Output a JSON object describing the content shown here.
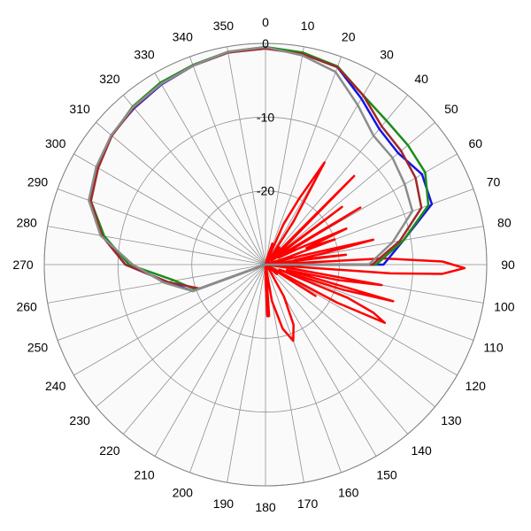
{
  "chart_data": {
    "type": "polar",
    "angle_ticks": [
      0,
      10,
      20,
      30,
      40,
      50,
      60,
      70,
      80,
      90,
      100,
      110,
      120,
      130,
      140,
      150,
      160,
      170,
      180,
      190,
      200,
      210,
      220,
      230,
      240,
      250,
      260,
      270,
      280,
      290,
      300,
      310,
      320,
      330,
      340,
      350
    ],
    "radial_ticks": [
      0,
      -10,
      -20
    ],
    "radial_range": [
      -30,
      0
    ],
    "angle_direction": "clockwise",
    "zero_angle_position": "top",
    "grid": true,
    "series": [
      {
        "color": "#ff0000",
        "angles": [
          0,
          5,
          10,
          15,
          18,
          20,
          24,
          27,
          30,
          33,
          36,
          39,
          42,
          45,
          48,
          50,
          53,
          56,
          59,
          62,
          64,
          66,
          68,
          70,
          72,
          74,
          76,
          77,
          79,
          81,
          83,
          85,
          87,
          89,
          91,
          93,
          94,
          96,
          98,
          100,
          102,
          104,
          106,
          108,
          110,
          112,
          114,
          116,
          118,
          120,
          122,
          124,
          126,
          128,
          130,
          132,
          134,
          136,
          140,
          145,
          150,
          155,
          160,
          165,
          170,
          172,
          174,
          176,
          178,
          180,
          185,
          190,
          200,
          250,
          300,
          350,
          360
        ],
        "values": [
          -32,
          -35,
          -32,
          -29,
          -27,
          -32,
          -24,
          -20,
          -14,
          -23,
          -29,
          -27,
          -30,
          -13,
          -27,
          -29,
          -17,
          -29,
          -15,
          -28,
          -25,
          -18,
          -24,
          -20,
          -27,
          -30,
          -25,
          -15,
          -22,
          -26,
          -19,
          -30,
          -14,
          -6,
          -3,
          -6,
          -13,
          -30,
          -27,
          -14,
          -20,
          -27,
          -12,
          -19,
          -28,
          -18,
          -14,
          -12,
          -19,
          -30,
          -22,
          -31,
          -33,
          -32,
          -28,
          -32,
          -32,
          -34,
          -33,
          -29,
          -25,
          -21,
          -19,
          -21,
          -25,
          -33,
          -29,
          -23,
          -23,
          -28,
          -34,
          -34,
          -38,
          -38,
          -38,
          -38,
          -32
        ]
      },
      {
        "color": "#1414e6",
        "angles": [
          0,
          10,
          20,
          30,
          40,
          50,
          60,
          70,
          80,
          90,
          100,
          110,
          120,
          140,
          170,
          200,
          230,
          250,
          260,
          270,
          280,
          290,
          300,
          310,
          320,
          330,
          340,
          350,
          360
        ],
        "values": [
          -0.5,
          -1,
          -1.5,
          -4,
          -6,
          -6.5,
          -5.5,
          -6,
          -11,
          -14,
          -32,
          -40,
          -40,
          -40,
          -40,
          -40,
          -30,
          -19.5,
          -16.5,
          -11,
          -7.5,
          -4.7,
          -3.6,
          -2.7,
          -2.3,
          -1.8,
          -1.3,
          -0.8,
          -0.5
        ]
      },
      {
        "color": "#1a8c1a",
        "angles": [
          0,
          10,
          20,
          30,
          40,
          50,
          60,
          70,
          80,
          90,
          100,
          110,
          120,
          140,
          170,
          200,
          230,
          250,
          260,
          270,
          280,
          290,
          300,
          310,
          320,
          330,
          340,
          350,
          360
        ],
        "values": [
          -0.5,
          -0.8,
          -1.4,
          -3.5,
          -4.5,
          -4.8,
          -5,
          -6.5,
          -11,
          -15,
          -32,
          -40,
          -40,
          -40,
          -40,
          -40,
          -30,
          -20,
          -17.5,
          -11.5,
          -7.8,
          -4.8,
          -3.7,
          -2.8,
          -2,
          -1.5,
          -1.2,
          -0.7,
          -0.5
        ]
      },
      {
        "color": "#a02828",
        "angles": [
          0,
          10,
          20,
          30,
          40,
          50,
          60,
          70,
          80,
          90,
          100,
          110,
          120,
          140,
          170,
          200,
          230,
          250,
          260,
          270,
          280,
          290,
          300,
          310,
          320,
          330,
          340,
          350,
          360
        ],
        "values": [
          -0.7,
          -1,
          -1.5,
          -3.5,
          -5.5,
          -6,
          -6.5,
          -7.5,
          -11.5,
          -15.5,
          -32,
          -40,
          -40,
          -40,
          -40,
          -40,
          -30,
          -20.5,
          -16.5,
          -11,
          -7.5,
          -4.8,
          -3.8,
          -2.8,
          -2.2,
          -1.7,
          -1.3,
          -0.8,
          -0.7
        ]
      },
      {
        "color": "#8c8c8c",
        "angles": [
          0,
          10,
          20,
          30,
          40,
          50,
          60,
          70,
          80,
          90,
          100,
          110,
          120,
          140,
          170,
          200,
          230,
          250,
          260,
          270,
          280,
          290,
          300,
          310,
          320,
          330,
          340,
          350,
          360
        ],
        "values": [
          -0.5,
          -1.2,
          -2.2,
          -5,
          -7.2,
          -7.5,
          -8.2,
          -8.8,
          -12.5,
          -16,
          -32,
          -40,
          -40,
          -40,
          -40,
          -40,
          -30,
          -19.5,
          -16,
          -12,
          -7.3,
          -4.5,
          -3.5,
          -2.7,
          -2.1,
          -1.7,
          -1.3,
          -0.7,
          -0.5
        ]
      }
    ]
  }
}
